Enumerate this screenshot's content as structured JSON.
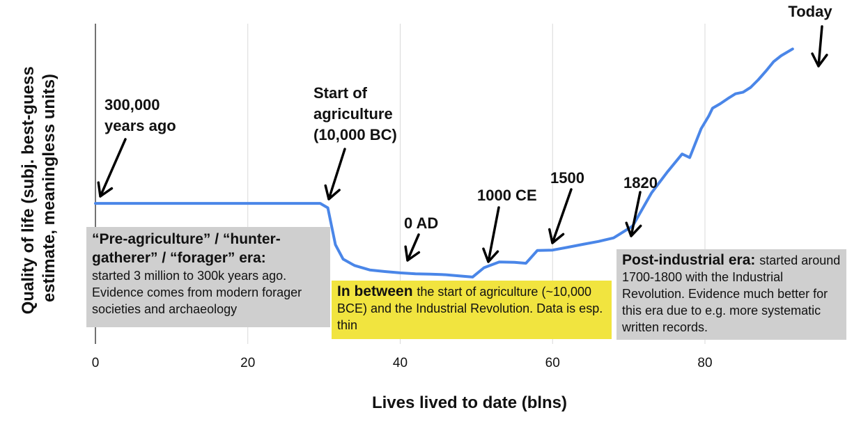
{
  "chart_data": {
    "type": "line",
    "title": "",
    "xlabel": "Lives lived to date (blns)",
    "ylabel": "Quality of life (subj. best-guess estimate, meaningless units)",
    "xlim": [
      0,
      96
    ],
    "ylim": [
      0,
      100
    ],
    "x_ticks": [
      0,
      20,
      40,
      60,
      80
    ],
    "x_tick_labels": [
      "0",
      "20",
      "40",
      "60",
      "80"
    ],
    "grid": "vertical",
    "line_color": "#4a86e8",
    "series": [
      {
        "x": [
          0,
          10,
          20,
          29.5,
          30.5,
          31.5,
          32.5,
          34,
          36,
          38,
          40,
          42,
          44,
          46,
          48,
          49.5,
          51,
          53,
          55,
          56.5,
          58,
          60,
          62,
          64,
          66,
          68,
          70.5,
          73,
          75,
          77,
          78,
          79.5,
          80.5,
          81,
          82,
          83,
          84,
          85,
          86,
          87,
          88,
          89,
          90,
          91.5
        ],
        "y": [
          43.9,
          43.9,
          43.9,
          43.9,
          42.5,
          31,
          26.5,
          24.5,
          23.1,
          22.6,
          22.2,
          21.9,
          21.8,
          21.6,
          21.2,
          20.9,
          23.8,
          25.6,
          25.5,
          25.2,
          29.2,
          29.3,
          30.2,
          31.1,
          32,
          33.1,
          36.8,
          47.2,
          53.5,
          59.3,
          58.2,
          67.2,
          71.2,
          73.6,
          75,
          76.6,
          78.1,
          78.6,
          80.1,
          82.5,
          85.2,
          88.1,
          90,
          92.1
        ]
      }
    ],
    "annotations": [
      {
        "id": "start",
        "lines": [
          "300,000",
          "years ago"
        ]
      },
      {
        "id": "agri",
        "lines": [
          "Start of",
          "agriculture",
          "(10,000 BC)"
        ]
      },
      {
        "id": "ad0",
        "lines": [
          "0 AD"
        ]
      },
      {
        "id": "ce1000",
        "lines": [
          "1000 CE"
        ]
      },
      {
        "id": "y1500",
        "lines": [
          "1500"
        ]
      },
      {
        "id": "y1820",
        "lines": [
          "1820"
        ]
      },
      {
        "id": "today",
        "lines": [
          "Today"
        ]
      }
    ],
    "text_boxes": {
      "pre": {
        "heading": "“Pre-agriculture” / “hunter-gatherer” / “forager” era:",
        "body": "started 3 million to 300k years ago. Evidence comes from modern forager societies and archaeology",
        "color": "#cfcfcf"
      },
      "mid": {
        "heading": "In between",
        "body": "the start of agriculture (~10,000 BCE) and the Industrial Revolution. Data is esp. thin",
        "color": "#f1e43f"
      },
      "post": {
        "heading": "Post-industrial era:",
        "body": "started around 1700-1800 with the Industrial Revolution. Evidence much better for this era due to e.g. more systematic written records.",
        "color": "#cfcfcf"
      }
    }
  }
}
